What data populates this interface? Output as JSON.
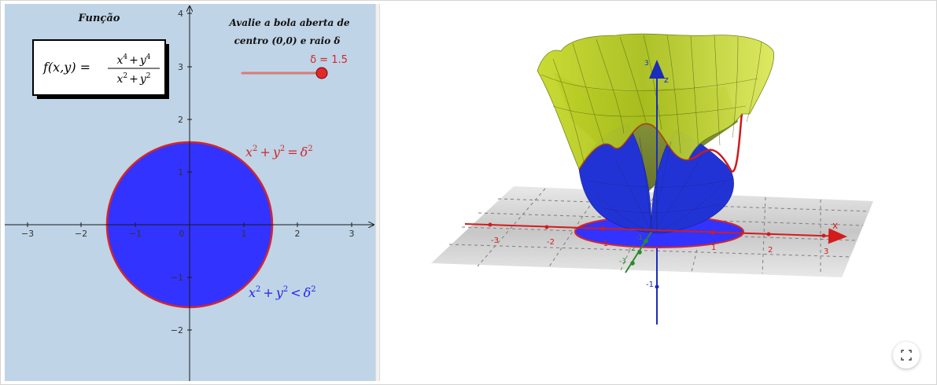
{
  "view2d": {
    "title": "Função",
    "prompt_line1": "Avalie a bola aberta de",
    "prompt_line2": "centro (0,0) e raio δ",
    "formula": {
      "lhs": "f(x,y) =",
      "numerator": {
        "a": "x",
        "a_exp": "4",
        "plus": "+",
        "b": "y",
        "b_exp": "4"
      },
      "denominator": {
        "a": "x",
        "a_exp": "2",
        "plus": "+",
        "b": "y",
        "b_exp": "2"
      }
    },
    "slider": {
      "label": "δ = 1.5",
      "value": 1.5,
      "min": 0,
      "max": 1.5
    },
    "circle_label": {
      "x": "x",
      "y": "y",
      "exp": "2",
      "plus": "+",
      "eq": "=",
      "delta": "δ"
    },
    "disk_label": {
      "x": "x",
      "y": "y",
      "exp": "2",
      "plus": "+",
      "lt": "<",
      "delta": "δ"
    },
    "x_ticks": [
      "−3",
      "−2",
      "−1",
      "0",
      "1",
      "2",
      "3"
    ],
    "y_ticks": [
      "4",
      "3",
      "2",
      "1",
      "−1",
      "−2"
    ],
    "colors": {
      "background": "#bfd4e6",
      "disk": "#3333ff",
      "circle": "#d1262e",
      "slider": "#d87a7a",
      "axis": "#1a1a1a"
    }
  },
  "view3d": {
    "x_axis_label": "x",
    "z_axis_label": "z",
    "x_ticks": [
      "-3",
      "-2",
      "-1",
      "1",
      "2",
      "3"
    ],
    "z_ticks": [
      "3",
      "-1"
    ],
    "y_ticks": [
      "-1",
      "-2",
      "-3"
    ],
    "colors": {
      "surface": "#c3d424",
      "inner": "#2233d6",
      "curve": "#cc1b1b",
      "x_axis": "#d21c1c",
      "y_axis": "#2c8a2c",
      "z_axis": "#1a2dbb",
      "plane": "#c8c8c8"
    }
  },
  "fullscreen_icon": "fullscreen-icon"
}
